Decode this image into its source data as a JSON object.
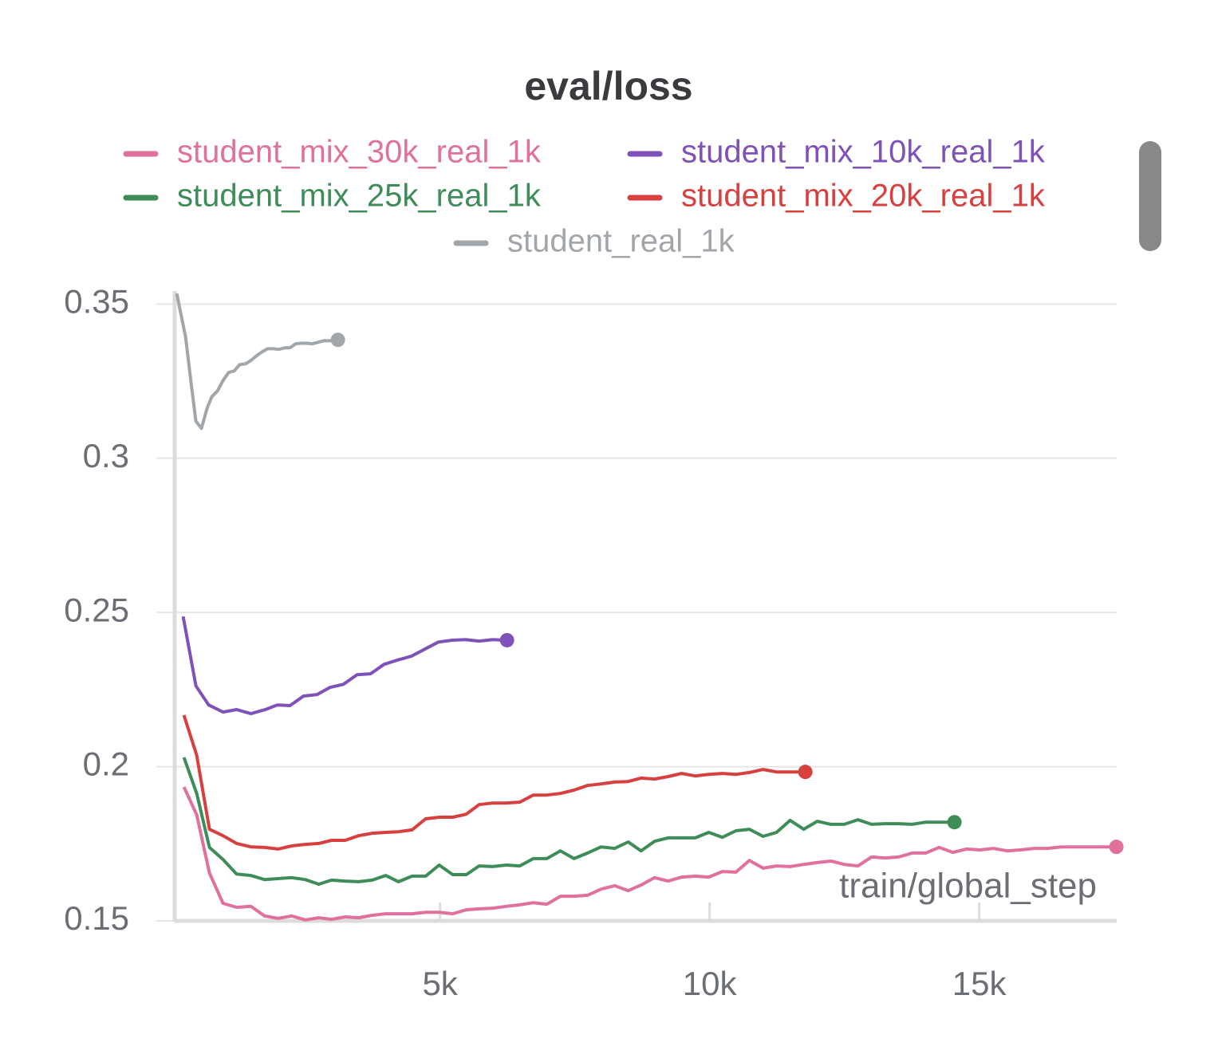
{
  "chart_data": {
    "type": "line",
    "title": "eval/loss",
    "x_label": "train/global_step",
    "xlim": [
      50,
      17550
    ],
    "xticks": [
      {
        "value": 5000,
        "label": "5k"
      },
      {
        "value": 10000,
        "label": "10k"
      },
      {
        "value": 15000,
        "label": "15k"
      }
    ],
    "ylim": [
      0.15,
      0.355
    ],
    "yticks": [
      0.15,
      0.2,
      0.25,
      0.3,
      0.35
    ],
    "grid": true,
    "series": [
      {
        "name": "student_mix_30k_real_1k",
        "color": "#e0709c",
        "x": [
          251,
          488,
          725,
          976,
          1228,
          1494,
          1746,
          1997,
          2249,
          2500,
          2751,
          2988,
          3240,
          3491,
          3743,
          3994,
          4231,
          4482,
          4734,
          4985,
          5237,
          5488,
          5725,
          5976,
          6228,
          6479,
          6731,
          6982,
          7234,
          7485,
          7737,
          7988,
          8240,
          8491,
          8728,
          8979,
          9231,
          9482,
          9734,
          9985,
          10237,
          10488,
          10740,
          10991,
          11243,
          11494,
          11746,
          11997,
          12249,
          12500,
          12751,
          13003,
          13254,
          13506,
          13757,
          14009,
          14260,
          14512,
          14763,
          15015,
          15266,
          15518,
          15769,
          16021,
          16272,
          16524,
          16775,
          17027,
          17278,
          17544
        ],
        "values": [
          0.1934,
          0.1844,
          0.1655,
          0.1557,
          0.1544,
          0.1547,
          0.1516,
          0.1508,
          0.1516,
          0.1503,
          0.151,
          0.1505,
          0.1513,
          0.151,
          0.1518,
          0.1523,
          0.1523,
          0.1523,
          0.1528,
          0.1528,
          0.1523,
          0.1536,
          0.1539,
          0.1541,
          0.1547,
          0.1552,
          0.1559,
          0.1554,
          0.158,
          0.158,
          0.1583,
          0.1603,
          0.1614,
          0.1598,
          0.1616,
          0.164,
          0.1629,
          0.1642,
          0.1645,
          0.1642,
          0.166,
          0.1658,
          0.1696,
          0.1671,
          0.1678,
          0.1676,
          0.1683,
          0.1689,
          0.1694,
          0.1683,
          0.1678,
          0.1707,
          0.1704,
          0.1707,
          0.172,
          0.172,
          0.1738,
          0.1722,
          0.1733,
          0.173,
          0.1735,
          0.1727,
          0.173,
          0.1735,
          0.1735,
          0.174,
          0.174,
          0.174,
          0.174,
          0.174
        ]
      },
      {
        "name": "student_mix_10k_real_1k",
        "color": "#7e52b8",
        "x": [
          237,
          473,
          710,
          976,
          1228,
          1494,
          1760,
          1982,
          2219,
          2470,
          2722,
          2959,
          3210,
          3462,
          3713,
          3964,
          4201,
          4467,
          4719,
          4970,
          5222,
          5473,
          5725,
          5976,
          6243
        ],
        "values": [
          0.2487,
          0.2262,
          0.22,
          0.2177,
          0.2185,
          0.2172,
          0.2185,
          0.22,
          0.2198,
          0.2229,
          0.2234,
          0.2257,
          0.2267,
          0.2298,
          0.2301,
          0.2332,
          0.2345,
          0.2358,
          0.2381,
          0.2404,
          0.241,
          0.2412,
          0.2407,
          0.2412,
          0.241
        ]
      },
      {
        "name": "student_mix_25k_real_1k",
        "color": "#3e8d59",
        "x": [
          251,
          488,
          725,
          976,
          1228,
          1494,
          1746,
          1997,
          2249,
          2500,
          2751,
          2988,
          3240,
          3491,
          3743,
          3994,
          4231,
          4482,
          4734,
          4985,
          5237,
          5488,
          5725,
          5976,
          6228,
          6479,
          6731,
          6982,
          7234,
          7485,
          7737,
          7988,
          8240,
          8491,
          8728,
          8979,
          9231,
          9482,
          9734,
          9985,
          10237,
          10488,
          10740,
          10991,
          11243,
          11494,
          11746,
          11997,
          12249,
          12500,
          12751,
          13003,
          13254,
          13506,
          13757,
          14009,
          14260,
          14541
        ],
        "values": [
          0.203,
          0.1913,
          0.1738,
          0.1699,
          0.1652,
          0.1647,
          0.1634,
          0.1637,
          0.164,
          0.1634,
          0.1619,
          0.1632,
          0.1629,
          0.1627,
          0.1632,
          0.1647,
          0.1627,
          0.1645,
          0.1645,
          0.1681,
          0.165,
          0.165,
          0.1678,
          0.1676,
          0.1681,
          0.1678,
          0.1702,
          0.1702,
          0.1727,
          0.1702,
          0.172,
          0.174,
          0.1735,
          0.1756,
          0.1727,
          0.1758,
          0.1769,
          0.1769,
          0.1769,
          0.1787,
          0.1771,
          0.1792,
          0.1797,
          0.1774,
          0.1787,
          0.1826,
          0.1797,
          0.1823,
          0.1813,
          0.1813,
          0.1828,
          0.1813,
          0.1815,
          0.1815,
          0.1813,
          0.182,
          0.182,
          0.182
        ]
      },
      {
        "name": "student_mix_20k_real_1k",
        "color": "#d8403f",
        "x": [
          251,
          488,
          725,
          976,
          1228,
          1494,
          1746,
          1997,
          2249,
          2500,
          2751,
          2988,
          3240,
          3491,
          3743,
          3994,
          4231,
          4482,
          4734,
          4985,
          5237,
          5488,
          5725,
          5976,
          6228,
          6479,
          6731,
          6982,
          7234,
          7485,
          7737,
          7988,
          8240,
          8491,
          8728,
          8979,
          9231,
          9482,
          9734,
          9985,
          10237,
          10488,
          10740,
          10991,
          11243,
          11494,
          11775
        ],
        "values": [
          0.2167,
          0.2037,
          0.1797,
          0.1776,
          0.1751,
          0.174,
          0.1738,
          0.1733,
          0.1743,
          0.1748,
          0.1751,
          0.1761,
          0.1761,
          0.1776,
          0.1784,
          0.1787,
          0.1789,
          0.1795,
          0.1831,
          0.1836,
          0.1836,
          0.1846,
          0.1877,
          0.1882,
          0.1882,
          0.1885,
          0.1908,
          0.1908,
          0.1913,
          0.1924,
          0.1939,
          0.1944,
          0.195,
          0.1952,
          0.1963,
          0.196,
          0.1968,
          0.1978,
          0.197,
          0.1975,
          0.1978,
          0.1975,
          0.1981,
          0.1991,
          0.1983,
          0.1983,
          0.1983
        ]
      },
      {
        "name": "student_real_1k",
        "color": "#a1a6ab",
        "x": [
          118,
          281,
          385,
          473,
          577,
          680,
          769,
          873,
          976,
          1080,
          1183,
          1287,
          1391,
          1494,
          1598,
          1701,
          1805,
          1908,
          2012,
          2115,
          2219,
          2322,
          2426,
          2530,
          2633,
          2737,
          2840,
          2944,
          3107
        ],
        "values": [
          0.3534,
          0.3394,
          0.3244,
          0.312,
          0.3097,
          0.3162,
          0.32,
          0.3218,
          0.3252,
          0.3278,
          0.3283,
          0.3304,
          0.3306,
          0.3317,
          0.3332,
          0.3345,
          0.3355,
          0.3355,
          0.3353,
          0.3358,
          0.3358,
          0.3371,
          0.3373,
          0.3373,
          0.3371,
          0.3376,
          0.3381,
          0.3381,
          0.3384
        ]
      }
    ]
  }
}
